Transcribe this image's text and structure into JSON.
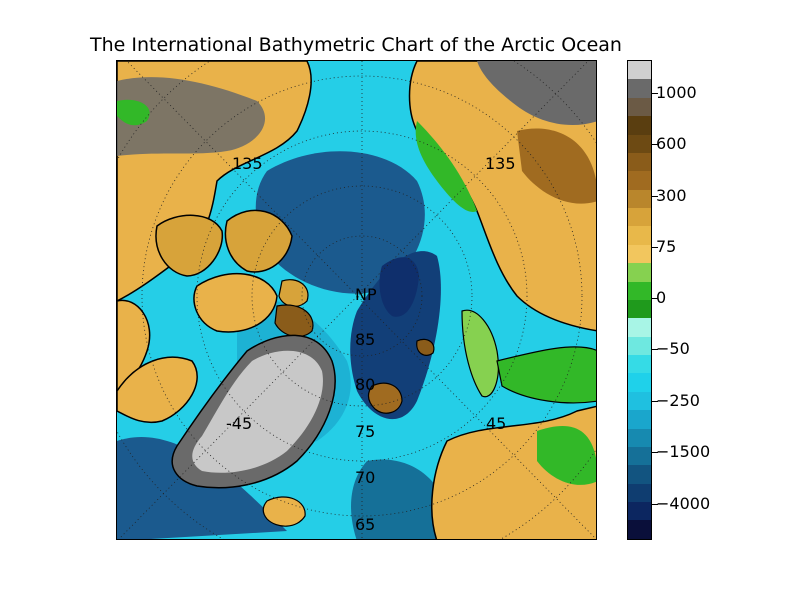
{
  "title": "The International Bathymetric Chart of the Arctic Ocean",
  "colorbar": {
    "colors": [
      "#d0d0d0",
      "#6a6a6a",
      "#6b5a45",
      "#5a3e10",
      "#6d4a13",
      "#8a5c1a",
      "#a06b20",
      "#b9862c",
      "#d7a33a",
      "#e8b84a",
      "#f2c65e",
      "#86d150",
      "#32b828",
      "#1f9a1c",
      "#a8f5e6",
      "#6ee8e0",
      "#35dbe6",
      "#1fd1ea",
      "#1fc0e0",
      "#1aa6cc",
      "#178ab0",
      "#157098",
      "#125480",
      "#0f3d70",
      "#0c2660",
      "#0a0f3a"
    ],
    "tick_labels": [
      "1000",
      "600",
      "300",
      "75",
      "0",
      "−50",
      "−250",
      "−1500",
      "−4000"
    ]
  },
  "graticule": {
    "meridian_labels": [
      "135",
      "135",
      "-45",
      "45"
    ],
    "latitude_labels": [
      "NP",
      "85",
      "80",
      "75",
      "70",
      "65"
    ]
  },
  "legend_colors": {
    "ice": "#c8c8c8",
    "land_low": "#e9b24a",
    "land_green": "#3cbf2c",
    "shelf": "#35d8ea",
    "slope": "#1aa6cc",
    "deep": "#1b5a8e",
    "abyss": "#0f2f6c"
  }
}
